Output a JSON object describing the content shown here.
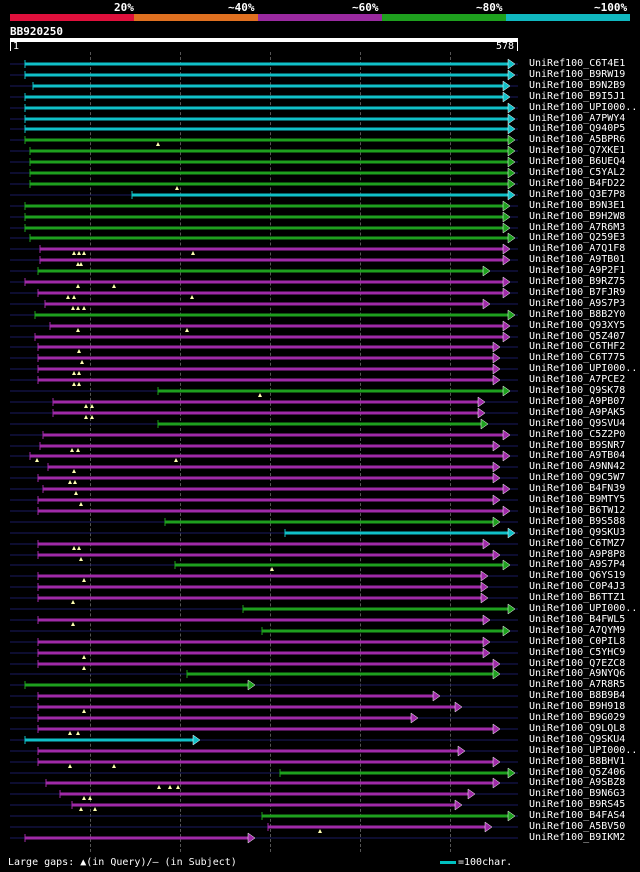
{
  "scale": {
    "labels": [
      "20%",
      "~40%",
      "~60%",
      "~80%",
      "~100%"
    ],
    "colors": [
      "#e0103c",
      "#e07020",
      "#9a2aa0",
      "#1ea01e",
      "#10b8c0"
    ]
  },
  "query": {
    "name": "BB920250",
    "start": "1",
    "end": "578"
  },
  "legend": {
    "large_gaps": "Large gaps: ▲(in Query)/– (in Subject)",
    "scale_note": "=100char."
  },
  "color_map": {
    "c": "#10c0c8",
    "g": "#1ea01e",
    "m": "#a02aa8"
  },
  "hits": [
    {
      "label": "UniRef100_C6T4E1",
      "x1": 25,
      "x2": 515,
      "c": "c",
      "arrow": "right",
      "marks": []
    },
    {
      "label": "UniRef100_B9RW19",
      "x1": 25,
      "x2": 515,
      "c": "c",
      "arrow": "right",
      "marks": []
    },
    {
      "label": "UniRef100_B9N2B9",
      "x1": 33,
      "x2": 510,
      "c": "c",
      "arrow": "right",
      "marks": []
    },
    {
      "label": "UniRef100_B9I5J1",
      "x1": 25,
      "x2": 510,
      "c": "c",
      "arrow": "right",
      "marks": []
    },
    {
      "label": "UniRef100_UPI000..",
      "x1": 25,
      "x2": 515,
      "c": "c",
      "arrow": "right",
      "marks": []
    },
    {
      "label": "UniRef100_A7PWY4",
      "x1": 25,
      "x2": 515,
      "c": "c",
      "arrow": "right",
      "marks": []
    },
    {
      "label": "UniRef100_Q940P5",
      "x1": 25,
      "x2": 515,
      "c": "c",
      "arrow": "right",
      "marks": []
    },
    {
      "label": "UniRef100_A5BPR6",
      "x1": 25,
      "x2": 515,
      "c": "g",
      "arrow": "right",
      "marks": [
        158
      ]
    },
    {
      "label": "UniRef100_Q7XKE1",
      "x1": 30,
      "x2": 515,
      "c": "g",
      "arrow": "right",
      "marks": []
    },
    {
      "label": "UniRef100_B6UEQ4",
      "x1": 30,
      "x2": 515,
      "c": "g",
      "arrow": "right",
      "marks": []
    },
    {
      "label": "UniRef100_C5YAL2",
      "x1": 30,
      "x2": 515,
      "c": "g",
      "arrow": "right",
      "marks": []
    },
    {
      "label": "UniRef100_B4FD22",
      "x1": 30,
      "x2": 515,
      "c": "g",
      "arrow": "right",
      "marks": [
        177
      ]
    },
    {
      "label": "UniRef100_Q3E7P8",
      "x1": 132,
      "x2": 515,
      "c": "c",
      "arrow": "right",
      "marks": []
    },
    {
      "label": "UniRef100_B9N3E1",
      "x1": 25,
      "x2": 510,
      "c": "g",
      "arrow": "right",
      "marks": []
    },
    {
      "label": "UniRef100_B9H2W8",
      "x1": 25,
      "x2": 510,
      "c": "g",
      "arrow": "right",
      "marks": []
    },
    {
      "label": "UniRef100_A7R6M3",
      "x1": 25,
      "x2": 510,
      "c": "g",
      "arrow": "right",
      "marks": []
    },
    {
      "label": "UniRef100_Q259E3",
      "x1": 30,
      "x2": 515,
      "c": "g",
      "arrow": "right",
      "marks": []
    },
    {
      "label": "UniRef100_A7Q1F8",
      "x1": 40,
      "x2": 510,
      "c": "m",
      "arrow": "right",
      "marks": [
        74,
        79,
        84,
        193
      ]
    },
    {
      "label": "UniRef100_A9TB01",
      "x1": 40,
      "x2": 510,
      "c": "m",
      "arrow": "right",
      "marks": [
        78,
        81
      ]
    },
    {
      "label": "UniRef100_A9P2F1",
      "x1": 38,
      "x2": 490,
      "c": "g",
      "arrow": "right",
      "marks": []
    },
    {
      "label": "UniRef100_B9RZ75",
      "x1": 25,
      "x2": 510,
      "c": "m",
      "arrow": "right",
      "marks": [
        78,
        114
      ]
    },
    {
      "label": "UniRef100_B7FJR9",
      "x1": 38,
      "x2": 510,
      "c": "m",
      "arrow": "right",
      "marks": [
        68,
        74,
        192
      ]
    },
    {
      "label": "UniRef100_A9S7P3",
      "x1": 45,
      "x2": 490,
      "c": "m",
      "arrow": "right",
      "marks": [
        73,
        78,
        84
      ]
    },
    {
      "label": "UniRef100_B8B2Y0",
      "x1": 35,
      "x2": 515,
      "c": "g",
      "arrow": "right",
      "marks": []
    },
    {
      "label": "UniRef100_Q93XY5",
      "x1": 50,
      "x2": 510,
      "c": "m",
      "arrow": "right",
      "marks": [
        78,
        187
      ]
    },
    {
      "label": "UniRef100_Q5Z407",
      "x1": 35,
      "x2": 510,
      "c": "m",
      "arrow": "right",
      "marks": []
    },
    {
      "label": "UniRef100_C6THF2",
      "x1": 38,
      "x2": 500,
      "c": "m",
      "arrow": "right",
      "marks": [
        79
      ]
    },
    {
      "label": "UniRef100_C6T775",
      "x1": 38,
      "x2": 500,
      "c": "m",
      "arrow": "right",
      "marks": [
        82
      ]
    },
    {
      "label": "UniRef100_UPI000..",
      "x1": 38,
      "x2": 500,
      "c": "m",
      "arrow": "right",
      "marks": [
        74,
        79
      ]
    },
    {
      "label": "UniRef100_A7PCE2",
      "x1": 38,
      "x2": 500,
      "c": "m",
      "arrow": "right",
      "marks": [
        74,
        79
      ]
    },
    {
      "label": "UniRef100_Q9SK78",
      "x1": 158,
      "x2": 510,
      "c": "g",
      "arrow": "right",
      "marks": [
        260
      ]
    },
    {
      "label": "UniRef100_A9PB07",
      "x1": 53,
      "x2": 485,
      "c": "m",
      "arrow": "right",
      "marks": [
        86,
        92
      ]
    },
    {
      "label": "UniRef100_A9PAK5",
      "x1": 53,
      "x2": 485,
      "c": "m",
      "arrow": "right",
      "marks": [
        86,
        92
      ]
    },
    {
      "label": "UniRef100_Q9SVU4",
      "x1": 158,
      "x2": 488,
      "c": "g",
      "arrow": "right",
      "marks": []
    },
    {
      "label": "UniRef100_C5Z2P0",
      "x1": 43,
      "x2": 510,
      "c": "m",
      "arrow": "right",
      "marks": []
    },
    {
      "label": "UniRef100_B9SNR7",
      "x1": 40,
      "x2": 500,
      "c": "m",
      "arrow": "right",
      "marks": [
        72,
        78
      ]
    },
    {
      "label": "UniRef100_A9TB04",
      "x1": 30,
      "x2": 510,
      "c": "m",
      "arrow": "right",
      "marks": [
        37,
        176
      ]
    },
    {
      "label": "UniRef100_A9NN42",
      "x1": 48,
      "x2": 500,
      "c": "m",
      "arrow": "right",
      "marks": [
        74
      ]
    },
    {
      "label": "UniRef100_Q9C5W7",
      "x1": 38,
      "x2": 500,
      "c": "m",
      "arrow": "right",
      "marks": [
        70,
        75
      ]
    },
    {
      "label": "UniRef100_B4FN39",
      "x1": 43,
      "x2": 510,
      "c": "m",
      "arrow": "right",
      "marks": [
        76
      ]
    },
    {
      "label": "UniRef100_B9MTY5",
      "x1": 38,
      "x2": 500,
      "c": "m",
      "arrow": "right",
      "marks": [
        81
      ]
    },
    {
      "label": "UniRef100_B6TW12",
      "x1": 38,
      "x2": 510,
      "c": "m",
      "arrow": "right",
      "marks": []
    },
    {
      "label": "UniRef100_B9S588",
      "x1": 165,
      "x2": 500,
      "c": "g",
      "arrow": "right",
      "marks": []
    },
    {
      "label": "UniRef100_Q9SKU3",
      "x1": 285,
      "x2": 515,
      "c": "c",
      "arrow": "right",
      "marks": []
    },
    {
      "label": "UniRef100_C6TMZ7",
      "x1": 38,
      "x2": 490,
      "c": "m",
      "arrow": "right",
      "marks": [
        74,
        79
      ]
    },
    {
      "label": "UniRef100_A9P8P8",
      "x1": 38,
      "x2": 500,
      "c": "m",
      "arrow": "right",
      "marks": [
        81
      ]
    },
    {
      "label": "UniRef100_A9S7P4",
      "x1": 175,
      "x2": 510,
      "c": "g",
      "arrow": "right",
      "marks": [
        272
      ]
    },
    {
      "label": "UniRef100_Q6YS19",
      "x1": 38,
      "x2": 488,
      "c": "m",
      "arrow": "right",
      "marks": [
        84
      ]
    },
    {
      "label": "UniRef100_C0P4J3",
      "x1": 38,
      "x2": 488,
      "c": "m",
      "arrow": "right",
      "marks": []
    },
    {
      "label": "UniRef100_B6TTZ1",
      "x1": 38,
      "x2": 488,
      "c": "m",
      "arrow": "right",
      "marks": [
        73
      ]
    },
    {
      "label": "UniRef100_UPI000..",
      "x1": 243,
      "x2": 515,
      "c": "g",
      "arrow": "right",
      "marks": []
    },
    {
      "label": "UniRef100_B4FWL5",
      "x1": 38,
      "x2": 490,
      "c": "m",
      "arrow": "right",
      "marks": [
        73
      ]
    },
    {
      "label": "UniRef100_A7QYM9",
      "x1": 262,
      "x2": 510,
      "c": "g",
      "arrow": "right",
      "marks": []
    },
    {
      "label": "UniRef100_C0PIL8",
      "x1": 38,
      "x2": 490,
      "c": "m",
      "arrow": "right",
      "marks": []
    },
    {
      "label": "UniRef100_C5YHC9",
      "x1": 38,
      "x2": 490,
      "c": "m",
      "arrow": "right",
      "marks": [
        84
      ]
    },
    {
      "label": "UniRef100_Q7EZC8",
      "x1": 38,
      "x2": 500,
      "c": "m",
      "arrow": "right",
      "marks": [
        84
      ]
    },
    {
      "label": "UniRef100_A9NYQ6",
      "x1": 187,
      "x2": 500,
      "c": "g",
      "arrow": "right",
      "marks": []
    },
    {
      "label": "UniRef100_A7R8R5",
      "x1": 25,
      "x2": 255,
      "c": "g",
      "arrow": "right",
      "marks": []
    },
    {
      "label": "UniRef100_B8B9B4",
      "x1": 38,
      "x2": 440,
      "c": "m",
      "arrow": "right",
      "marks": []
    },
    {
      "label": "UniRef100_B9H918",
      "x1": 38,
      "x2": 462,
      "c": "m",
      "arrow": "right",
      "marks": [
        84
      ]
    },
    {
      "label": "UniRef100_B9G029",
      "x1": 38,
      "x2": 418,
      "c": "m",
      "arrow": "right",
      "marks": []
    },
    {
      "label": "UniRef100_Q9LQL8",
      "x1": 38,
      "x2": 500,
      "c": "m",
      "arrow": "right",
      "marks": [
        70,
        78
      ]
    },
    {
      "label": "UniRef100_Q9SKU4",
      "x1": 25,
      "x2": 200,
      "c": "c",
      "arrow": "right",
      "marks": []
    },
    {
      "label": "UniRef100_UPI000..",
      "x1": 38,
      "x2": 465,
      "c": "m",
      "arrow": "right",
      "marks": []
    },
    {
      "label": "UniRef100_B8BHV1",
      "x1": 38,
      "x2": 500,
      "c": "m",
      "arrow": "right",
      "marks": [
        70,
        114
      ]
    },
    {
      "label": "UniRef100_Q5Z406",
      "x1": 280,
      "x2": 515,
      "c": "g",
      "arrow": "right",
      "marks": []
    },
    {
      "label": "UniRef100_A9SBZ8",
      "x1": 46,
      "x2": 500,
      "c": "m",
      "arrow": "right",
      "marks": [
        159,
        170,
        178
      ]
    },
    {
      "label": "UniRef100_B9N6G3",
      "x1": 60,
      "x2": 475,
      "c": "m",
      "arrow": "right",
      "marks": [
        84,
        90
      ]
    },
    {
      "label": "UniRef100_B9RS45",
      "x1": 72,
      "x2": 462,
      "c": "m",
      "arrow": "right",
      "marks": [
        81,
        95
      ]
    },
    {
      "label": "UniRef100_B4FAS4",
      "x1": 262,
      "x2": 515,
      "c": "g",
      "arrow": "right",
      "marks": []
    },
    {
      "label": "UniRef100_A5BV50",
      "x1": 268,
      "x2": 492,
      "c": "m",
      "arrow": "right",
      "marks": [
        320
      ]
    },
    {
      "label": "UniRef100_B9IKM2",
      "x1": 25,
      "x2": 255,
      "c": "m",
      "arrow": "right",
      "marks": []
    }
  ]
}
